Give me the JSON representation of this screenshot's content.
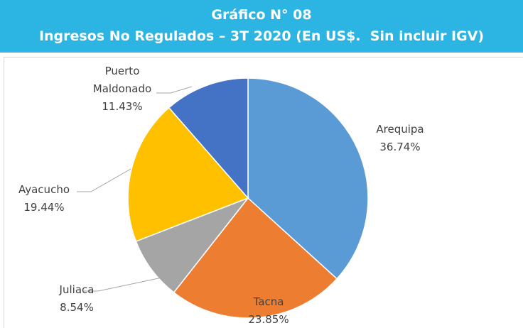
{
  "chart_data": {
    "type": "pie",
    "title": "Gráfico N° 08",
    "subtitle": "Ingresos No Regulados – 3T 2020 (En US$.  Sin incluir IGV)",
    "categories": [
      "Arequipa",
      "Tacna",
      "Juliaca",
      "Ayacucho",
      "Puerto Maldonado"
    ],
    "values": [
      36.74,
      23.85,
      8.54,
      19.44,
      11.43
    ],
    "value_labels": [
      "36.74%",
      "23.85%",
      "8.54%",
      "19.44%",
      "11.43%"
    ],
    "colors": [
      "#5b9bd5",
      "#ed7d31",
      "#a5a5a5",
      "#ffc000",
      "#4472c4"
    ]
  }
}
